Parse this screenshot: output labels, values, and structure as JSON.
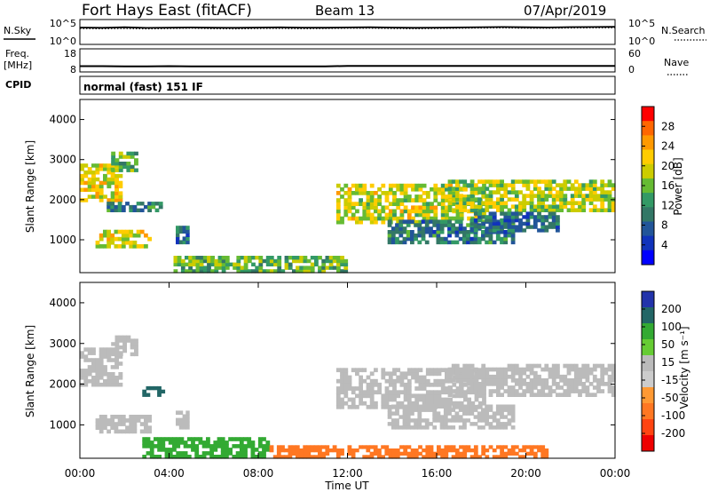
{
  "header": {
    "station": "Fort Hays East (fitACF)",
    "beam": "Beam 13",
    "date": "07/Apr/2019"
  },
  "left_labels": {
    "nsky": "N.Sky",
    "freq": "Freq.",
    "freq_unit": "[MHz]",
    "cpid": "CPID"
  },
  "right_labels": {
    "nsearch": "N.Search",
    "nave": "Nave"
  },
  "mode_text": "normal (fast) 151 IF",
  "chart_data": [
    {
      "type": "line",
      "panel": "noise",
      "left_ticks": [
        "10^5",
        "10^0"
      ],
      "right_ticks": [
        "10^5",
        "10^0"
      ],
      "series": [
        {
          "name": "N.Sky",
          "values": [
            2500,
            2200,
            2800,
            2100,
            2400,
            2600,
            2300,
            2200,
            2500,
            2700,
            2400,
            2300,
            2600,
            2800,
            2500,
            2200,
            2400,
            2600,
            2900,
            3100,
            2800,
            2600,
            3000,
            3200,
            3400
          ]
        },
        {
          "name": "N.Search",
          "values": [
            1500,
            1400,
            1600,
            1300,
            1500,
            1700,
            1400,
            1300,
            1500,
            1600,
            1400,
            1500,
            1700,
            1800,
            1500,
            1400,
            1500,
            1700,
            1900,
            2000,
            1800,
            1700,
            1900,
            2100,
            2200
          ]
        }
      ]
    },
    {
      "type": "line",
      "panel": "frequency",
      "left_ticks": [
        "18",
        "8"
      ],
      "right_ticks": [
        "60",
        "0"
      ],
      "series": [
        {
          "name": "Freq.",
          "values": [
            10.5,
            10.5,
            10.4,
            10.4,
            10.5,
            10.4,
            10.4,
            10.4,
            10.4,
            10.4,
            10.4,
            10.4,
            10.6,
            10.6,
            10.6,
            10.6,
            10.6,
            10.6,
            10.6,
            10.6,
            10.6,
            10.6,
            10.6,
            10.6,
            10.6
          ]
        }
      ]
    },
    {
      "type": "heatmap",
      "panel": "power",
      "ylabel": "Slant Range [km]",
      "yticks": [
        "1000",
        "2000",
        "3000",
        "4000"
      ],
      "ylim": [
        180,
        4500
      ],
      "xlim": [
        0,
        24
      ],
      "colorbar_label": "Power [dB]",
      "colorbar_ticks": [
        "28",
        "24",
        "20",
        "16",
        "12",
        "8",
        "4"
      ],
      "colorbar_colors": [
        "#ff0000",
        "#ff6600",
        "#ff9900",
        "#ffcc00",
        "#cccc00",
        "#66bb33",
        "#339966",
        "#337766",
        "#225599",
        "#1133bb",
        "#0000ff"
      ],
      "regions": [
        {
          "t0": 0.0,
          "t1": 1.9,
          "r0": 1950,
          "r1": 2900,
          "v": 20
        },
        {
          "t0": 1.4,
          "t1": 2.6,
          "r0": 2700,
          "r1": 3200,
          "v": 14
        },
        {
          "t0": 1.2,
          "t1": 3.7,
          "r0": 1700,
          "r1": 1950,
          "v": 9
        },
        {
          "t0": 0.7,
          "t1": 3.2,
          "r0": 800,
          "r1": 1250,
          "v": 19
        },
        {
          "t0": 4.3,
          "t1": 4.9,
          "r0": 900,
          "r1": 1350,
          "v": 8
        },
        {
          "t0": 11.5,
          "t1": 18.2,
          "r0": 1400,
          "r1": 2400,
          "v": 18
        },
        {
          "t0": 13.8,
          "t1": 19.5,
          "r0": 900,
          "r1": 1500,
          "v": 9
        },
        {
          "t0": 16.5,
          "t1": 24.0,
          "r0": 1700,
          "r1": 2500,
          "v": 17
        },
        {
          "t0": 17.5,
          "t1": 21.5,
          "r0": 1200,
          "r1": 1700,
          "v": 8
        },
        {
          "t0": 4.2,
          "t1": 12.0,
          "r0": 180,
          "r1": 600,
          "v": 14
        }
      ]
    },
    {
      "type": "heatmap",
      "panel": "velocity",
      "ylabel": "Slant Range [km]",
      "yticks": [
        "1000",
        "2000",
        "3000",
        "4000"
      ],
      "ylim": [
        180,
        4500
      ],
      "xlim": [
        0,
        24
      ],
      "xticks": [
        "00:00",
        "04:00",
        "08:00",
        "12:00",
        "16:00",
        "20:00",
        "00:00"
      ],
      "xlabel": "Time UT",
      "colorbar_label": "Velocity [m s⁻¹]",
      "colorbar_ticks": [
        "200",
        "100",
        "50",
        "15",
        "-15",
        "-50",
        "-100",
        "-200"
      ],
      "colorbar_colors": [
        "#2233aa",
        "#226666",
        "#33aa33",
        "#66cc33",
        "#bbbbbb",
        "#cccccc",
        "#ff9933",
        "#ff7722",
        "#ff4411",
        "#ee0000"
      ],
      "regions": [
        {
          "t0": 0.0,
          "t1": 1.9,
          "r0": 1950,
          "r1": 2900,
          "v": 0
        },
        {
          "t0": 1.4,
          "t1": 2.6,
          "r0": 2700,
          "r1": 3200,
          "v": 0
        },
        {
          "t0": 2.8,
          "t1": 3.8,
          "r0": 1700,
          "r1": 1950,
          "v": 80
        },
        {
          "t0": 0.7,
          "t1": 3.2,
          "r0": 800,
          "r1": 1250,
          "v": 0
        },
        {
          "t0": 4.3,
          "t1": 4.9,
          "r0": 900,
          "r1": 1350,
          "v": 0
        },
        {
          "t0": 11.5,
          "t1": 18.2,
          "r0": 1400,
          "r1": 2400,
          "v": 0
        },
        {
          "t0": 13.8,
          "t1": 19.5,
          "r0": 900,
          "r1": 1500,
          "v": 0
        },
        {
          "t0": 16.5,
          "t1": 24.0,
          "r0": 1700,
          "r1": 2500,
          "v": 0
        },
        {
          "t0": 2.8,
          "t1": 8.5,
          "r0": 180,
          "r1": 700,
          "v": 40
        },
        {
          "t0": 8.5,
          "t1": 21.0,
          "r0": 180,
          "r1": 500,
          "v": -60
        }
      ]
    }
  ]
}
